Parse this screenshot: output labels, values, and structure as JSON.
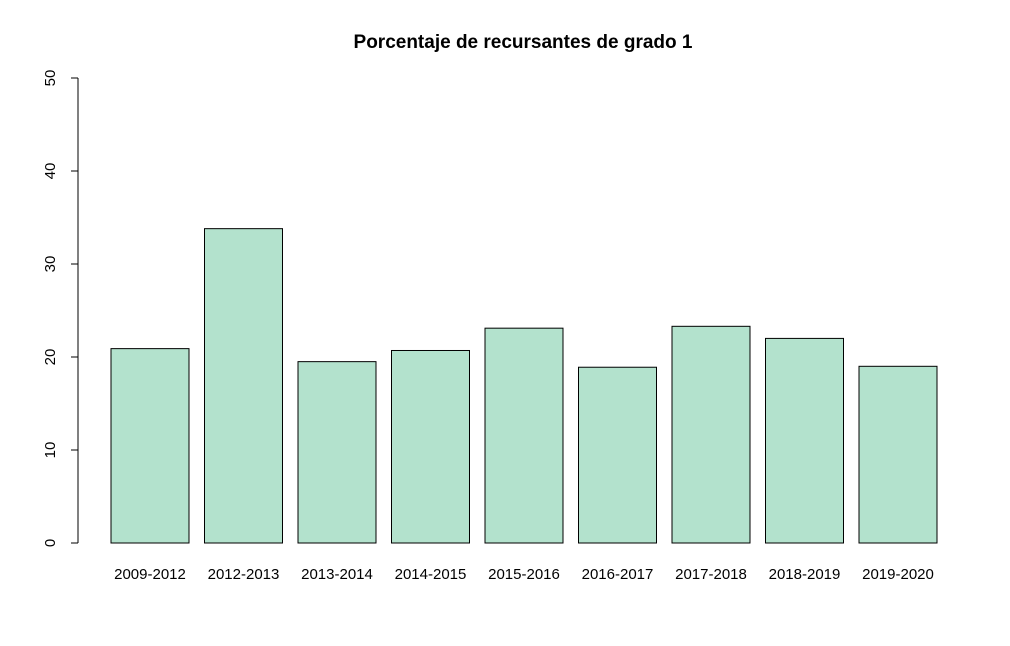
{
  "chart_data": {
    "type": "bar",
    "title": "Porcentaje de recursantes de grado 1",
    "xlabel": "",
    "ylabel": "",
    "categories": [
      "2009-2012",
      "2012-2013",
      "2013-2014",
      "2014-2015",
      "2015-2016",
      "2016-2017",
      "2017-2018",
      "2018-2019",
      "2019-2020"
    ],
    "values": [
      20.9,
      33.8,
      19.5,
      20.7,
      23.1,
      18.9,
      23.3,
      22.0,
      19.0
    ],
    "ylim": [
      0,
      50
    ],
    "yticks": [
      "0",
      "10",
      "20",
      "30",
      "40",
      "50"
    ],
    "bar_color": "#b3e2cd",
    "grid": false,
    "legend": "none"
  }
}
